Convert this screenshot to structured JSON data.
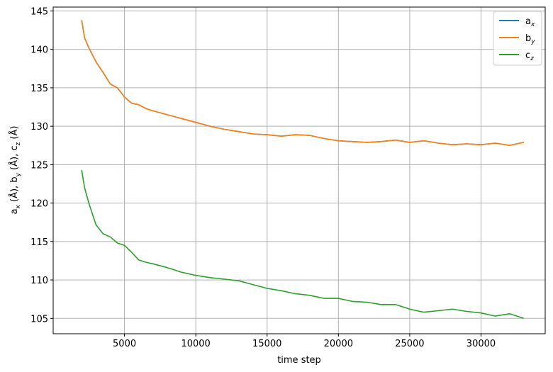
{
  "chart_data": {
    "type": "line",
    "xlabel": "time step",
    "ylabel": {
      "a": "a",
      "a_sub": "x",
      "a_tail": " (Å), ",
      "b": "b",
      "b_sub": "y",
      "b_tail": " (Å), ",
      "c": "c",
      "c_sub": "z",
      "c_tail": " (Å)"
    },
    "xlim": [
      0,
      34500
    ],
    "ylim": [
      103,
      145.5
    ],
    "xticks": [
      5000,
      10000,
      15000,
      20000,
      25000,
      30000
    ],
    "yticks": [
      105,
      110,
      115,
      120,
      125,
      130,
      135,
      140,
      145
    ],
    "grid": true,
    "legend_position": "top-right",
    "legend": [
      {
        "base": "a",
        "sub": "x",
        "color": "#1f77b4"
      },
      {
        "base": "b",
        "sub": "y",
        "color": "#ff7f0e"
      },
      {
        "base": "c",
        "sub": "z",
        "color": "#2ca02c"
      }
    ],
    "series": [
      {
        "name": "a_x",
        "color": "#1f77b4",
        "x": [
          2000,
          2200,
          2500,
          3000,
          3500,
          4000,
          4500,
          5000,
          5500,
          6000,
          6500,
          7000,
          8000,
          9000,
          10000,
          11000,
          12000,
          13000,
          14000,
          15000,
          16000,
          17000,
          18000,
          19000,
          20000,
          21000,
          22000,
          23000,
          24000,
          25000,
          26000,
          27000,
          28000,
          29000,
          30000,
          31000,
          32000,
          33000
        ],
        "y": [
          143.8,
          141.5,
          140.2,
          138.4,
          137.0,
          135.5,
          135.0,
          133.8,
          133.0,
          132.8,
          132.3,
          132.0,
          131.5,
          131.0,
          130.5,
          130.0,
          129.6,
          129.3,
          129.0,
          128.9,
          128.7,
          128.9,
          128.8,
          128.4,
          128.1,
          128.0,
          127.9,
          128.0,
          128.2,
          127.9,
          128.1,
          127.8,
          127.6,
          127.7,
          127.6,
          127.8,
          127.5,
          127.9
        ]
      },
      {
        "name": "b_y",
        "color": "#ff7f0e",
        "x": [
          2000,
          2200,
          2500,
          3000,
          3500,
          4000,
          4500,
          5000,
          5500,
          6000,
          6500,
          7000,
          8000,
          9000,
          10000,
          11000,
          12000,
          13000,
          14000,
          15000,
          16000,
          17000,
          18000,
          19000,
          20000,
          21000,
          22000,
          23000,
          24000,
          25000,
          26000,
          27000,
          28000,
          29000,
          30000,
          31000,
          32000,
          33000
        ],
        "y": [
          143.8,
          141.5,
          140.2,
          138.4,
          137.0,
          135.5,
          135.0,
          133.8,
          133.0,
          132.8,
          132.3,
          132.0,
          131.5,
          131.0,
          130.5,
          130.0,
          129.6,
          129.3,
          129.0,
          128.9,
          128.7,
          128.9,
          128.8,
          128.4,
          128.1,
          128.0,
          127.9,
          128.0,
          128.2,
          127.9,
          128.1,
          127.8,
          127.6,
          127.7,
          127.6,
          127.8,
          127.5,
          127.9
        ]
      },
      {
        "name": "c_z",
        "color": "#2ca02c",
        "x": [
          2000,
          2200,
          2500,
          3000,
          3500,
          4000,
          4500,
          5000,
          5500,
          6000,
          6500,
          7000,
          8000,
          9000,
          10000,
          11000,
          12000,
          13000,
          14000,
          15000,
          16000,
          17000,
          18000,
          19000,
          20000,
          21000,
          22000,
          23000,
          24000,
          25000,
          26000,
          27000,
          28000,
          29000,
          30000,
          31000,
          32000,
          33000
        ],
        "y": [
          124.3,
          122.0,
          120.0,
          117.2,
          116.0,
          115.6,
          114.8,
          114.5,
          113.6,
          112.6,
          112.3,
          112.1,
          111.6,
          111.0,
          110.6,
          110.3,
          110.1,
          109.9,
          109.4,
          108.9,
          108.6,
          108.2,
          108.0,
          107.6,
          107.6,
          107.2,
          107.1,
          106.8,
          106.8,
          106.2,
          105.8,
          106.0,
          106.2,
          105.9,
          105.7,
          105.3,
          105.6,
          105.0
        ]
      }
    ]
  }
}
